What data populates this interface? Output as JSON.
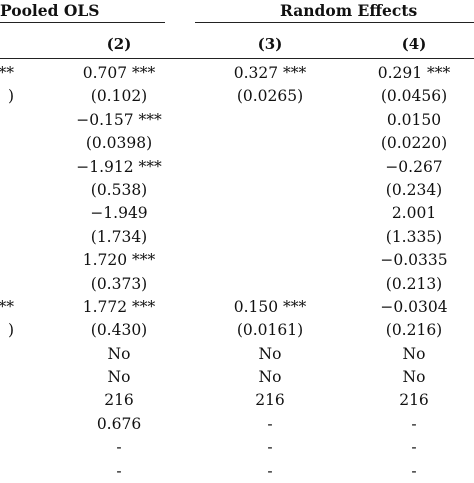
{
  "headers": {
    "pooled_ols": "Pooled OLS",
    "random_effects": "Random Effects",
    "columns": [
      "(2)",
      "(3)",
      "(4)"
    ]
  },
  "rows": [
    {
      "c1": "**",
      "c2": "0.707 ***",
      "c3": "0.327 ***",
      "c4": "0.291 ***"
    },
    {
      "c1": ")",
      "c2": "(0.102)",
      "c3": "(0.0265)",
      "c4": "(0.0456)"
    },
    {
      "c1": "",
      "c2": "−0.157 ***",
      "c3": "",
      "c4": "0.0150"
    },
    {
      "c1": "",
      "c2": "(0.0398)",
      "c3": "",
      "c4": "(0.0220)"
    },
    {
      "c1": "",
      "c2": "−1.912 ***",
      "c3": "",
      "c4": "−0.267"
    },
    {
      "c1": "",
      "c2": "(0.538)",
      "c3": "",
      "c4": "(0.234)"
    },
    {
      "c1": "",
      "c2": "−1.949",
      "c3": "",
      "c4": "2.001"
    },
    {
      "c1": "",
      "c2": "(1.734)",
      "c3": "",
      "c4": "(1.335)"
    },
    {
      "c1": "",
      "c2": "1.720 ***",
      "c3": "",
      "c4": "−0.0335"
    },
    {
      "c1": "",
      "c2": "(0.373)",
      "c3": "",
      "c4": "(0.213)"
    },
    {
      "c1": "**",
      "c2": "1.772 ***",
      "c3": "0.150 ***",
      "c4": "−0.0304"
    },
    {
      "c1": ")",
      "c2": "(0.430)",
      "c3": "(0.0161)",
      "c4": "(0.216)"
    },
    {
      "c1": "",
      "c2": "No",
      "c3": "No",
      "c4": "No"
    },
    {
      "c1": "",
      "c2": "No",
      "c3": "No",
      "c4": "No"
    },
    {
      "c1": "",
      "c2": "216",
      "c3": "216",
      "c4": "216"
    },
    {
      "c1": "",
      "c2": "0.676",
      "c3": "-",
      "c4": "-"
    },
    {
      "c1": "",
      "c2": "-",
      "c3": "-",
      "c4": "-"
    },
    {
      "c1": "",
      "c2": "-",
      "c3": "-",
      "c4": "-"
    }
  ]
}
